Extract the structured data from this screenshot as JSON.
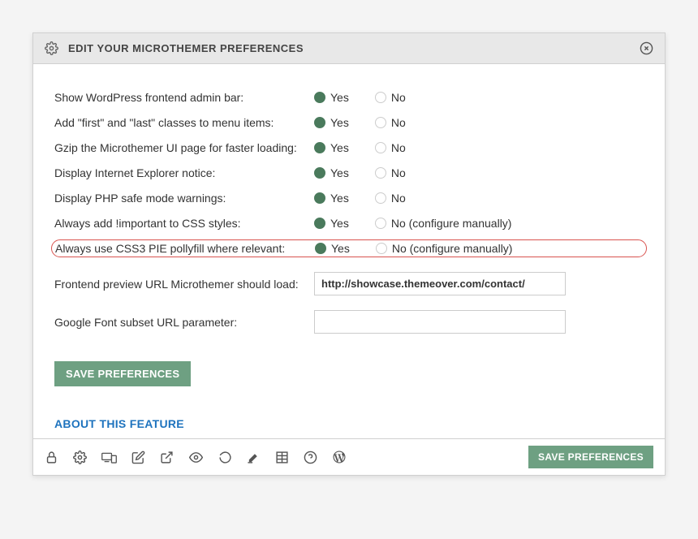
{
  "header": {
    "title": "EDIT YOUR MICROTHEMER PREFERENCES"
  },
  "preferences": [
    {
      "label": "Show WordPress frontend admin bar:",
      "yes": "Yes",
      "no": "No",
      "selected": "yes",
      "highlighted": false
    },
    {
      "label": "Add \"first\" and \"last\" classes to menu items:",
      "yes": "Yes",
      "no": "No",
      "selected": "yes",
      "highlighted": false
    },
    {
      "label": "Gzip the Microthemer UI page for faster loading:",
      "yes": "Yes",
      "no": "No",
      "selected": "yes",
      "highlighted": false
    },
    {
      "label": "Display Internet Explorer notice:",
      "yes": "Yes",
      "no": "No",
      "selected": "yes",
      "highlighted": false
    },
    {
      "label": "Display PHP safe mode warnings:",
      "yes": "Yes",
      "no": "No",
      "selected": "yes",
      "highlighted": false
    },
    {
      "label": "Always add !important to CSS styles:",
      "yes": "Yes",
      "no": "No (configure manually)",
      "selected": "yes",
      "highlighted": false
    },
    {
      "label": "Always use CSS3 PIE pollyfill where relevant:",
      "yes": "Yes",
      "no": "No (configure manually)",
      "selected": "yes",
      "highlighted": true
    }
  ],
  "inputs": {
    "preview_url_label": "Frontend preview URL Microthemer should load:",
    "preview_url_value": "http://showcase.themeover.com/contact/",
    "google_font_label": "Google Font subset URL parameter:",
    "google_font_value": ""
  },
  "buttons": {
    "save": "SAVE PREFERENCES",
    "footer_save": "SAVE PREFERENCES"
  },
  "links": {
    "about": "ABOUT THIS FEATURE"
  },
  "colors": {
    "accent": "#6ea082",
    "link": "#1e73be",
    "highlight_border": "#d9534f"
  }
}
